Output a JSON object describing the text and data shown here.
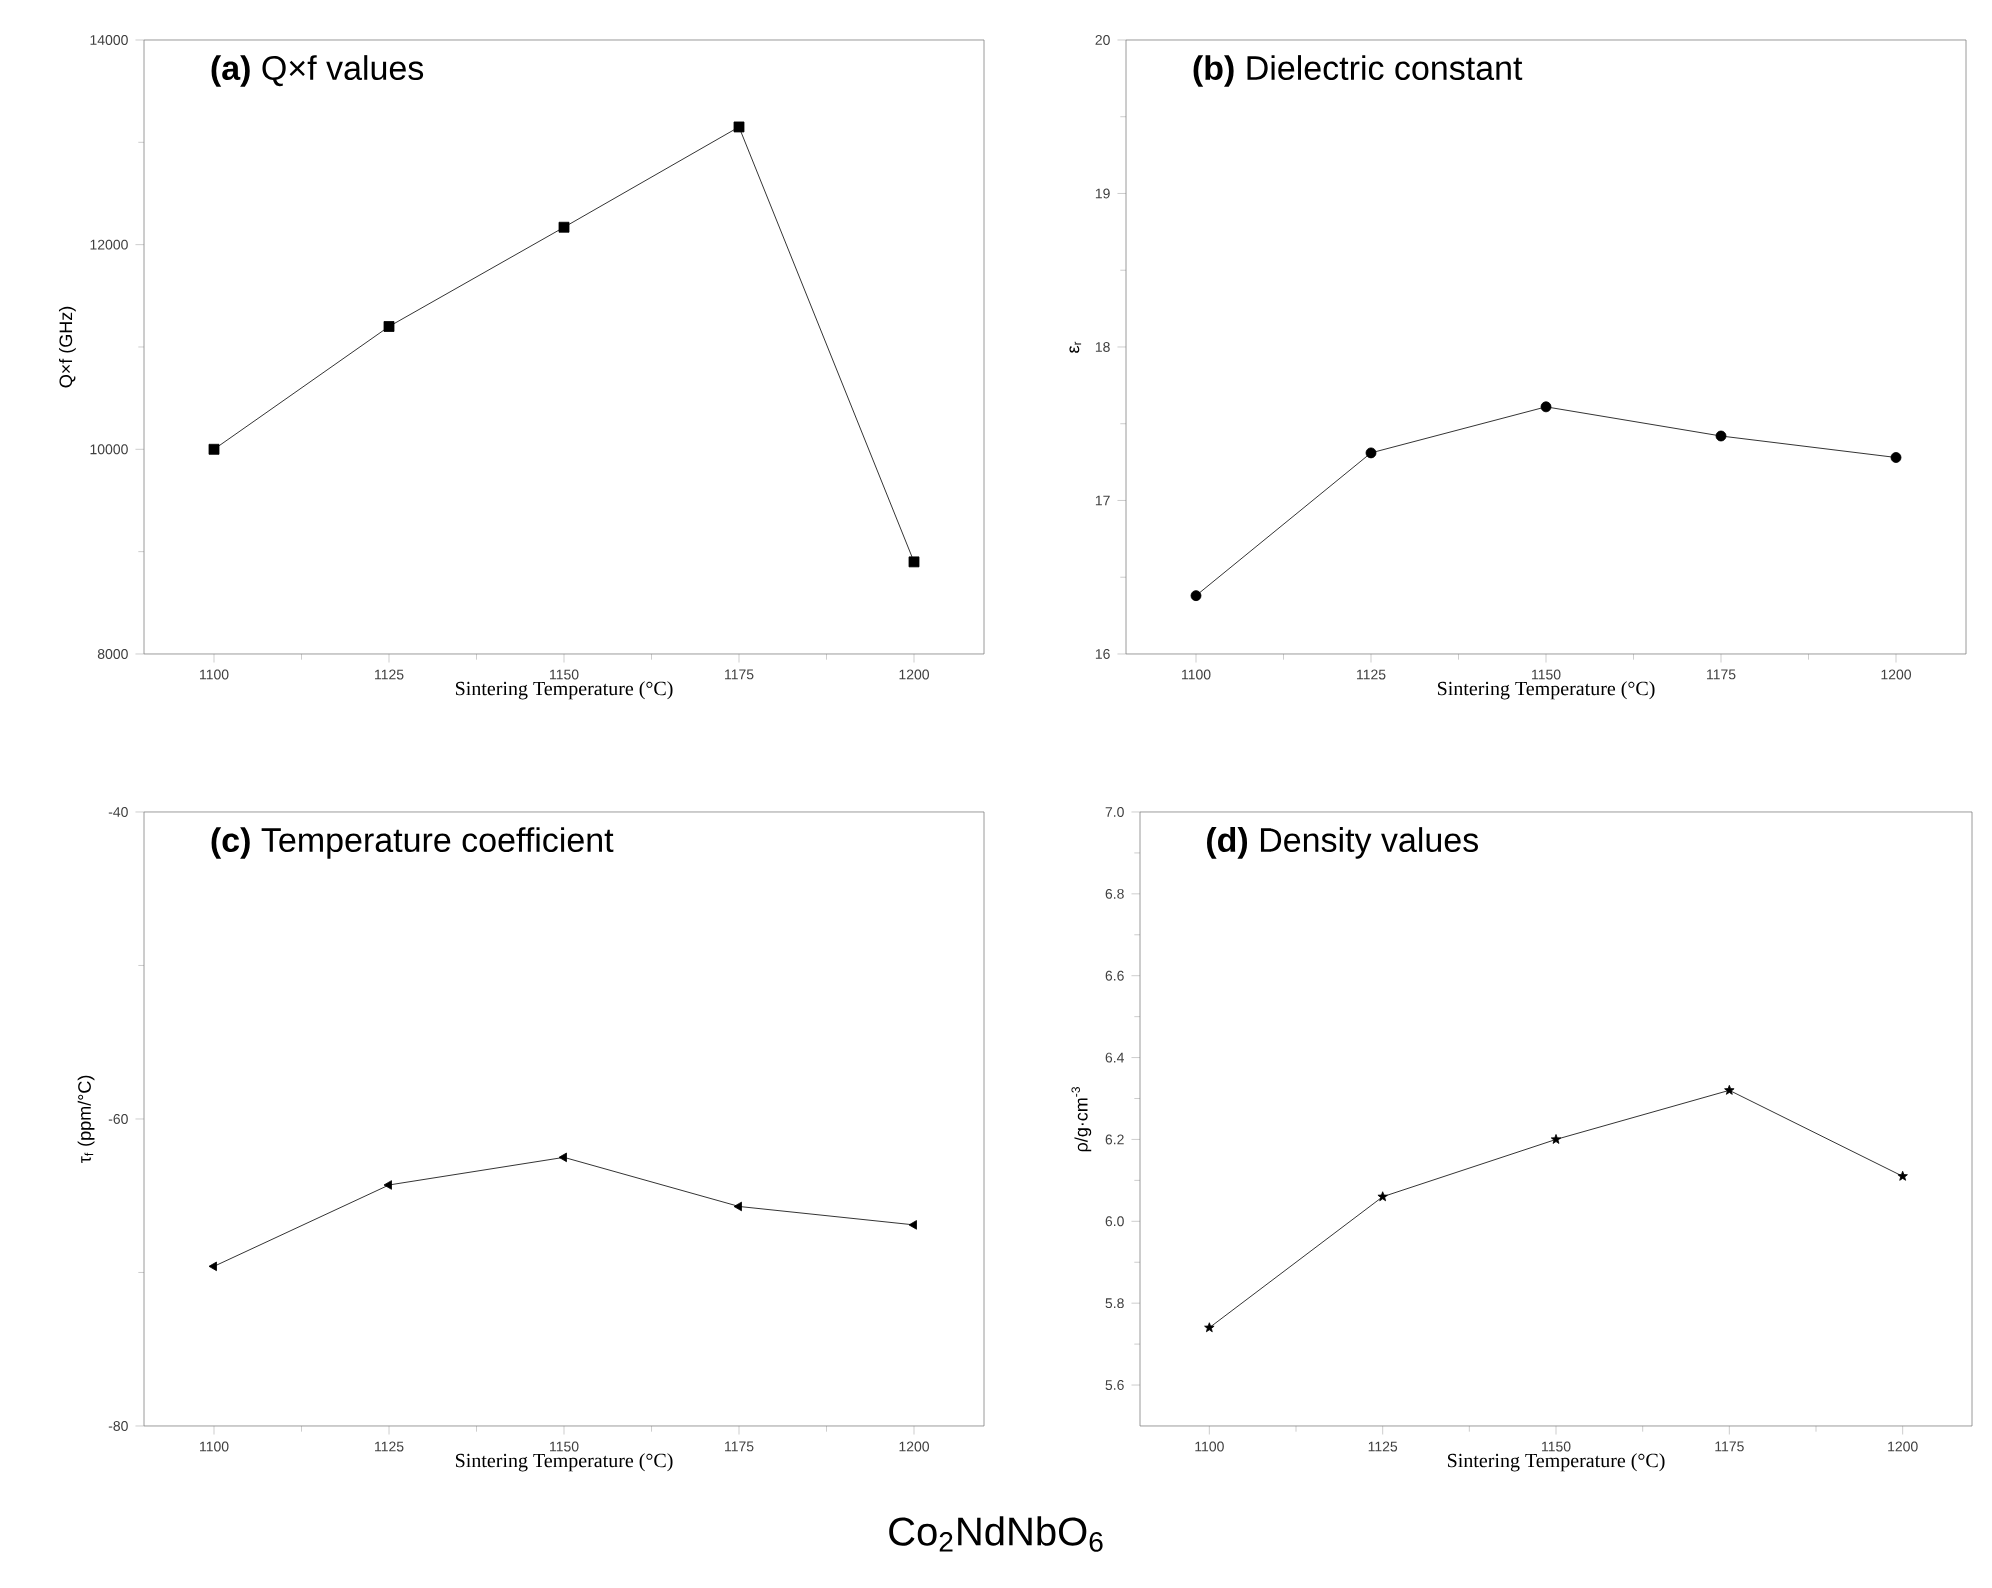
{
  "chart_data": [
    {
      "type": "line",
      "title": "**(a)** Q×f values",
      "xlabel": "Sintering Temperature (°C)",
      "ylabel": "Q×f (GHz)",
      "x": [
        1100,
        1125,
        1150,
        1175,
        1200
      ],
      "values": [
        10000,
        11200,
        12170,
        13150,
        8900
      ],
      "color": "#000000",
      "marker": "square",
      "line_style": "solid",
      "xlim": [
        1090,
        1210
      ],
      "ylim": [
        8000,
        14000
      ],
      "xticks": [
        1100,
        1125,
        1150,
        1175,
        1200
      ],
      "yticks": [
        8000,
        10000,
        12000,
        14000
      ]
    },
    {
      "type": "line",
      "title": "**(b)** Dielectric constant",
      "xlabel": "Sintering Temperature (°C)",
      "ylabel": "ε$_{r}$",
      "x": [
        1100,
        1125,
        1150,
        1175,
        1200
      ],
      "values": [
        16.38,
        17.31,
        17.61,
        17.42,
        17.28
      ],
      "color": "#000000",
      "marker": "circle",
      "line_style": "solid",
      "xlim": [
        1090,
        1210
      ],
      "ylim": [
        16,
        20
      ],
      "xticks": [
        1100,
        1125,
        1150,
        1175,
        1200
      ],
      "yticks": [
        16,
        17,
        18,
        19,
        20
      ]
    },
    {
      "type": "line",
      "title": "**(c)** Temperature coefficient",
      "xlabel": "Sintering Temperature (°C)",
      "ylabel": "τ$_{f}$ (ppm/°C)",
      "x": [
        1100,
        1125,
        1150,
        1175,
        1200
      ],
      "values": [
        -69.6,
        -64.3,
        -62.5,
        -65.7,
        -66.9
      ],
      "color": "#000000",
      "marker": "triangle",
      "line_style": "solid",
      "xlim": [
        1090,
        1210
      ],
      "ylim": [
        -80,
        -40
      ],
      "xticks": [
        1100,
        1125,
        1150,
        1175,
        1200
      ],
      "yticks": [
        -80,
        -60,
        -40
      ]
    },
    {
      "type": "line",
      "title": "**(d)** Density values",
      "xlabel": "Sintering Temperature (°C)",
      "ylabel": "ρ/g·cm$^{-3}$",
      "x": [
        1100,
        1125,
        1150,
        1175,
        1200
      ],
      "values": [
        5.74,
        6.06,
        6.2,
        6.32,
        6.11
      ],
      "color": "#000000",
      "marker": "star",
      "line_style": "solid",
      "xlim": [
        1090,
        1210
      ],
      "ylim": [
        5.5,
        7.0
      ],
      "xticks": [
        1100,
        1125,
        1150,
        1175,
        1200
      ],
      "yticks": [
        {
          "value": 5.6,
          "label": "5.6"
        },
        {
          "value": 5.8,
          "label": "5.8"
        },
        {
          "value": 6.0,
          "label": "6.0"
        },
        {
          "value": 6.2,
          "label": "6.2"
        },
        {
          "value": 6.4,
          "label": "6.4"
        },
        {
          "value": 6.6,
          "label": "6.6"
        },
        {
          "value": 6.8,
          "label": "6.8"
        },
        {
          "value": 7.0,
          "label": "7.0"
        }
      ],
      "annotations": [
        "Co$_{2}$NdNbO$_{6}$"
      ]
    }
  ]
}
